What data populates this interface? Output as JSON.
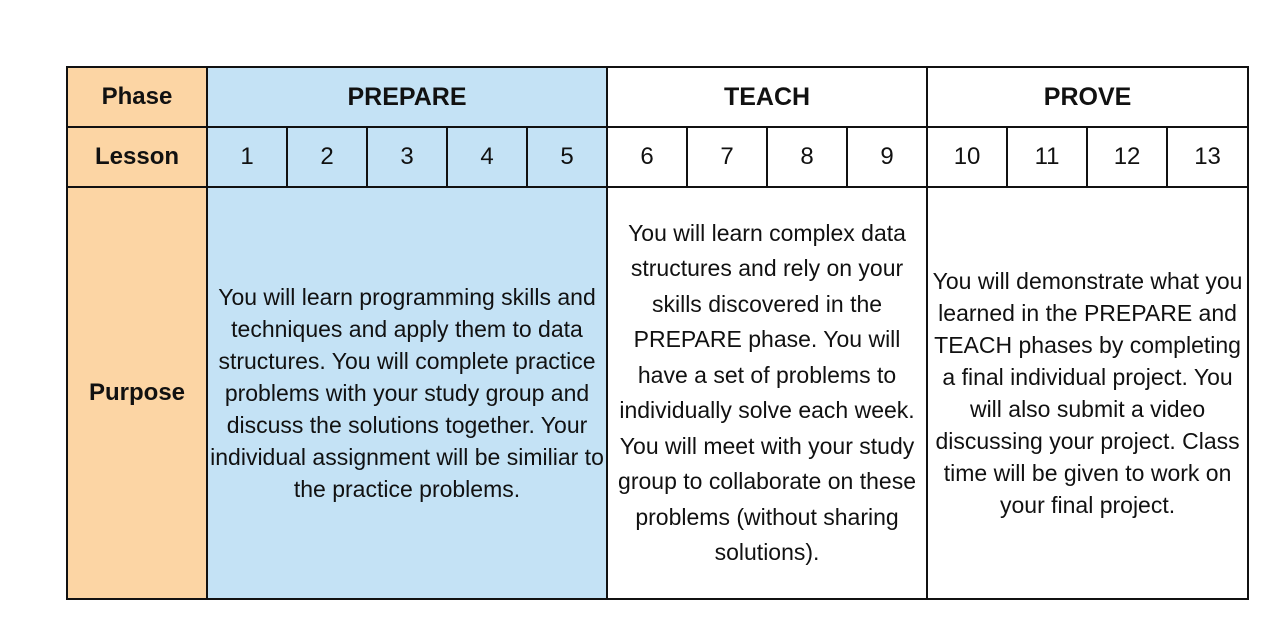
{
  "table": {
    "row_labels": {
      "phase": "Phase",
      "lesson": "Lesson",
      "purpose": "Purpose"
    },
    "phases": [
      {
        "name": "PREPARE",
        "color": "#c4e2f5",
        "lessons": [
          "1",
          "2",
          "3",
          "4",
          "5"
        ],
        "purpose": "You will learn programming skills and techniques and apply them to data structures.  You will complete practice problems with your study group and discuss the solutions together.  Your individual assignment will be similiar to the practice problems."
      },
      {
        "name": "TEACH",
        "color": "#ffffff",
        "lessons": [
          "6",
          "7",
          "8",
          "9"
        ],
        "purpose": "You will learn complex data structures and rely on your skills discovered in the PREPARE phase. You will have a set of problems to individually solve each week. You will meet with your study group to collaborate on these problems (without sharing solutions)."
      },
      {
        "name": "PROVE",
        "color": "#ffffff",
        "lessons": [
          "10",
          "11",
          "12",
          "13"
        ],
        "purpose": "You will demonstrate what you learned in the PREPARE and TEACH phases by completing a final individual project. You will also submit a video discussing your project. Class time will be given to work on your final project."
      }
    ],
    "header_color": "#fcd5a4"
  }
}
